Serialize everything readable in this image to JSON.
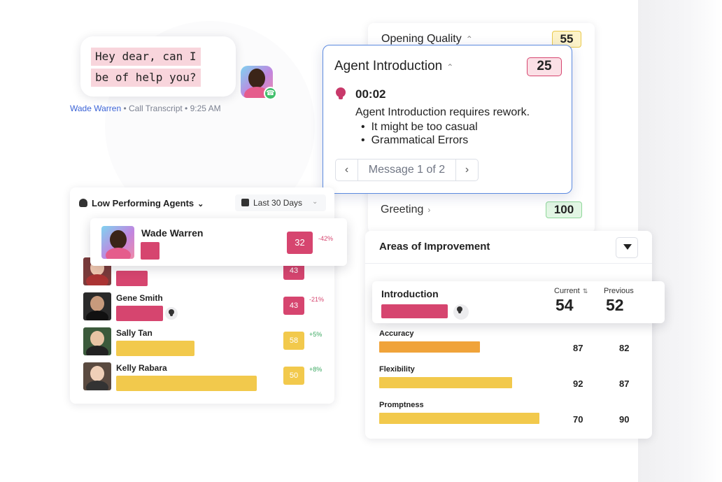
{
  "colors": {
    "accent_blue": "#5b8ae0",
    "low_red": "#d6456f",
    "mid_yellow": "#f2c94c",
    "orange": "#f0a33a",
    "good_green": "#8fd79a"
  },
  "chat": {
    "lines": [
      "Hey dear, can I",
      "be of help you?"
    ],
    "agent_name": "Wade Warren",
    "meta": " • Call Transcript • 9:25 AM",
    "call_icon": "phone-icon"
  },
  "opening_quality": {
    "title": "Opening Quality",
    "score": "55",
    "greeting": {
      "title": "Greeting",
      "score": "100"
    }
  },
  "agent_intro": {
    "title": "Agent Introduction",
    "score": "25",
    "time": "00:02",
    "description": "Agent Introduction requires rework.",
    "bullets": [
      "It might be too casual",
      "Grammatical Errors"
    ],
    "pager": {
      "prev": "‹",
      "text": "Message 1 of 2",
      "next": "›"
    }
  },
  "low_performing": {
    "title": "Low Performing Agents",
    "date_range": "Last 30 Days",
    "featured": {
      "name": "Wade Warren",
      "score": "32",
      "delta": "-42%",
      "bar": 0.1
    },
    "rows": [
      {
        "name": "",
        "score": "43",
        "delta": "",
        "bar": 0.22,
        "color": "#d6456f",
        "delta_color": "#d6456f"
      },
      {
        "name": "Gene Smith",
        "score": "43",
        "delta": "-21%",
        "bar": 0.33,
        "color": "#d6456f",
        "delta_color": "#d6456f"
      },
      {
        "name": "Sally Tan",
        "score": "58",
        "delta": "+5%",
        "bar": 0.55,
        "color": "#f2c94c",
        "delta_color": "#3aa860"
      },
      {
        "name": "Kelly Rabara",
        "score": "50",
        "delta": "+8%",
        "bar": 0.99,
        "color": "#f2c94c",
        "delta_color": "#3aa860"
      }
    ]
  },
  "areas": {
    "title": "Areas of Improvement",
    "filter_icon": "filter-icon",
    "current_label": "Current",
    "previous_label": "Previous",
    "highlight": {
      "name": "Introduction",
      "current": "54",
      "previous": "52"
    },
    "rows": [
      {
        "name": "Accuracy",
        "current": "87",
        "previous": "82",
        "bar": 0.63,
        "color": "#f0a33a"
      },
      {
        "name": "Flexibility",
        "current": "92",
        "previous": "87",
        "bar": 0.83,
        "color": "#f2c94c"
      },
      {
        "name": "Promptness",
        "current": "70",
        "previous": "90",
        "bar": 1.0,
        "color": "#f2c94c"
      }
    ]
  }
}
